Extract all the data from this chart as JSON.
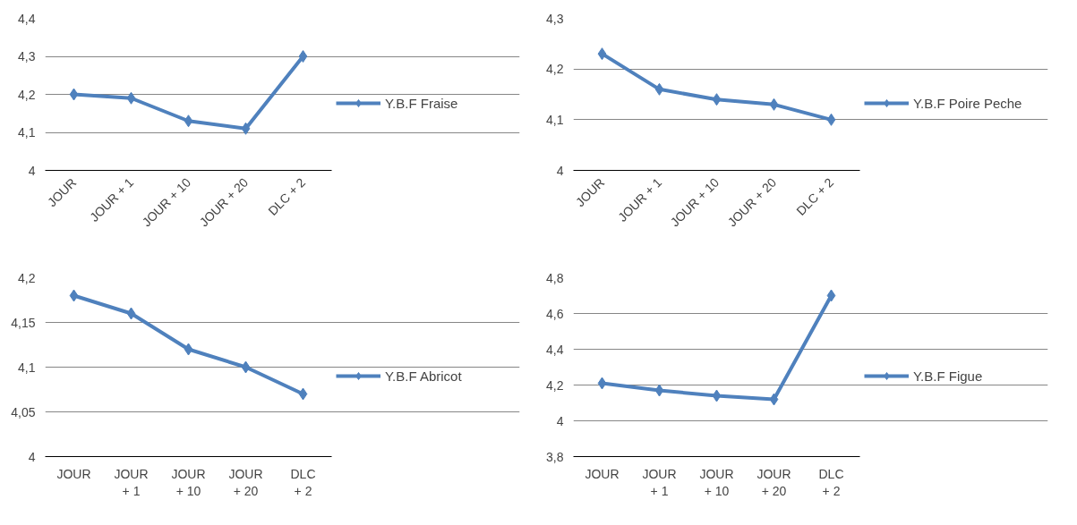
{
  "chart_data": [
    {
      "type": "line",
      "categories": [
        "JOUR",
        "JOUR + 1",
        "JOUR + 10",
        "JOUR + 20",
        "DLC + 2"
      ],
      "series": [
        {
          "name": "Y.B.F Fraise",
          "color": "#4f81bd",
          "values": [
            4.2,
            4.19,
            4.13,
            4.11,
            4.3
          ]
        }
      ],
      "ylim": [
        4,
        4.4
      ],
      "yticks": [
        {
          "value": 4,
          "label": "4"
        },
        {
          "value": 4.1,
          "label": "4,1"
        },
        {
          "value": 4.2,
          "label": "4,2"
        },
        {
          "value": 4.3,
          "label": "4,3"
        },
        {
          "value": 4.4,
          "label": "4,4"
        }
      ],
      "grid": "y",
      "legend": "right",
      "marker": "diamond",
      "line_style": "solid"
    },
    {
      "type": "line",
      "categories": [
        "JOUR",
        "JOUR + 1",
        "JOUR + 10",
        "JOUR + 20",
        "DLC + 2"
      ],
      "series": [
        {
          "name": "Y.B.F Poire Peche",
          "color": "#4f81bd",
          "values": [
            4.23,
            4.16,
            4.14,
            4.13,
            4.1
          ]
        }
      ],
      "ylim": [
        4,
        4.3
      ],
      "yticks": [
        {
          "value": 4,
          "label": "4"
        },
        {
          "value": 4.1,
          "label": "4,1"
        },
        {
          "value": 4.2,
          "label": "4,2"
        },
        {
          "value": 4.3,
          "label": "4,3"
        }
      ],
      "grid": "y",
      "legend": "right",
      "marker": "diamond",
      "line_style": "solid"
    },
    {
      "type": "line",
      "categories": [
        "JOUR",
        "JOUR + 1",
        "JOUR + 10",
        "JOUR + 20",
        "DLC + 2"
      ],
      "series": [
        {
          "name": "Y.B.F Abricot",
          "color": "#4f81bd",
          "values": [
            4.18,
            4.16,
            4.12,
            4.1,
            4.07
          ]
        }
      ],
      "ylim": [
        4,
        4.2
      ],
      "yticks": [
        {
          "value": 4,
          "label": "4"
        },
        {
          "value": 4.05,
          "label": "4,05"
        },
        {
          "value": 4.1,
          "label": "4,1"
        },
        {
          "value": 4.15,
          "label": "4,15"
        },
        {
          "value": 4.2,
          "label": "4,2"
        }
      ],
      "grid": "y",
      "legend": "right",
      "marker": "diamond",
      "line_style": "solid"
    },
    {
      "type": "line",
      "categories": [
        "JOUR",
        "JOUR + 1",
        "JOUR + 10",
        "JOUR + 20",
        "DLC + 2"
      ],
      "series": [
        {
          "name": "Y.B.F Figue",
          "color": "#4f81bd",
          "values": [
            4.21,
            4.17,
            4.14,
            4.12,
            4.7
          ]
        }
      ],
      "ylim": [
        3.8,
        4.8
      ],
      "yticks": [
        {
          "value": 3.8,
          "label": "3,8"
        },
        {
          "value": 4,
          "label": "4"
        },
        {
          "value": 4.2,
          "label": "4,2"
        },
        {
          "value": 4.4,
          "label": "4,4"
        },
        {
          "value": 4.6,
          "label": "4,6"
        },
        {
          "value": 4.8,
          "label": "4,8"
        }
      ],
      "grid": "y",
      "legend": "right",
      "marker": "diamond",
      "line_style": "solid"
    }
  ]
}
